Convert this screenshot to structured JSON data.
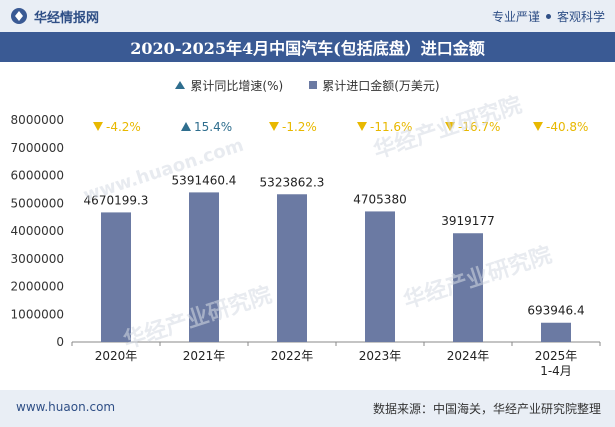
{
  "header": {
    "brand": "华经情报网",
    "right_text_1": "专业严谨",
    "right_text_2": "客观科学"
  },
  "title": "2020-2025年4月中国汽车(包括底盘）进口金额",
  "legend": {
    "growth": "累计同比增速(%)",
    "amount": "累计进口金额(万美元)"
  },
  "footer": {
    "website": "www.huaon.com",
    "source": "数据来源：中国海关，华经产业研究院整理"
  },
  "watermark": {
    "cn": "华经产业研究院",
    "en": "www.huaon.com"
  },
  "colors": {
    "bar": "#6b7aa3",
    "up": "#2f6e8e",
    "down": "#e8b800",
    "title_bg": "#3a5a94"
  },
  "chart_data": {
    "type": "bar",
    "categories": [
      "2020年",
      "2021年",
      "2022年",
      "2023年",
      "2024年",
      "2025年\n1-4月"
    ],
    "series": [
      {
        "name": "累计进口金额(万美元)",
        "values": [
          4670199.3,
          5391460.4,
          5323862.3,
          4705380,
          3919177,
          693946.4
        ],
        "labels": [
          "4670199.3",
          "5391460.4",
          "5323862.3",
          "4705380",
          "3919177",
          "693946.4"
        ]
      },
      {
        "name": "累计同比增速(%)",
        "values": [
          -4.2,
          15.4,
          -1.2,
          -11.6,
          -16.7,
          -40.8
        ],
        "labels": [
          "-4.2%",
          "15.4%",
          "-1.2%",
          "-11.6%",
          "-16.7%",
          "-40.8%"
        ]
      }
    ],
    "yticks": [
      "0",
      "1000000",
      "2000000",
      "3000000",
      "4000000",
      "5000000",
      "6000000",
      "7000000",
      "8000000"
    ],
    "ylim": [
      0,
      8000000
    ],
    "grid": false
  }
}
